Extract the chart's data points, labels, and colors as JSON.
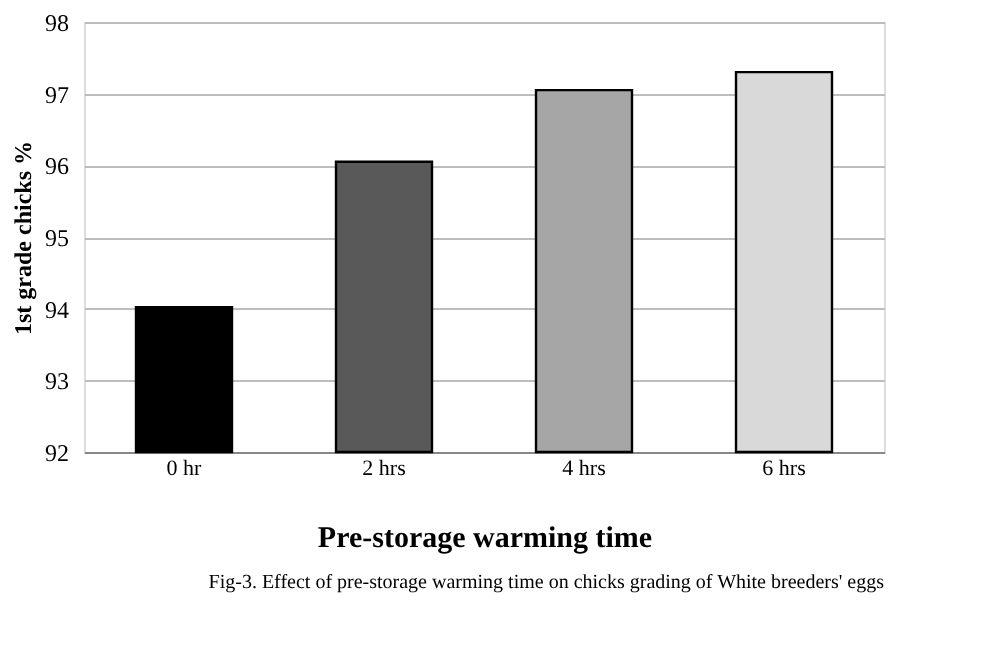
{
  "chart_data": {
    "type": "bar",
    "title": "Fig-3. Effect of pre-storage warming time on chicks grading of White breeders' eggs",
    "xlabel": "Pre-storage warming time",
    "ylabel": "1st grade chicks %",
    "categories": [
      "0 hr",
      "2 hrs",
      "4 hrs",
      "6 hrs"
    ],
    "values": [
      94.02,
      96.05,
      97.05,
      97.3
    ],
    "colors": [
      "#000000",
      "#595959",
      "#a6a6a6",
      "#d9d9d9"
    ],
    "ylim": [
      92,
      98
    ],
    "yticks": [
      92,
      93,
      94,
      95,
      96,
      97,
      98
    ],
    "grid": "y"
  }
}
